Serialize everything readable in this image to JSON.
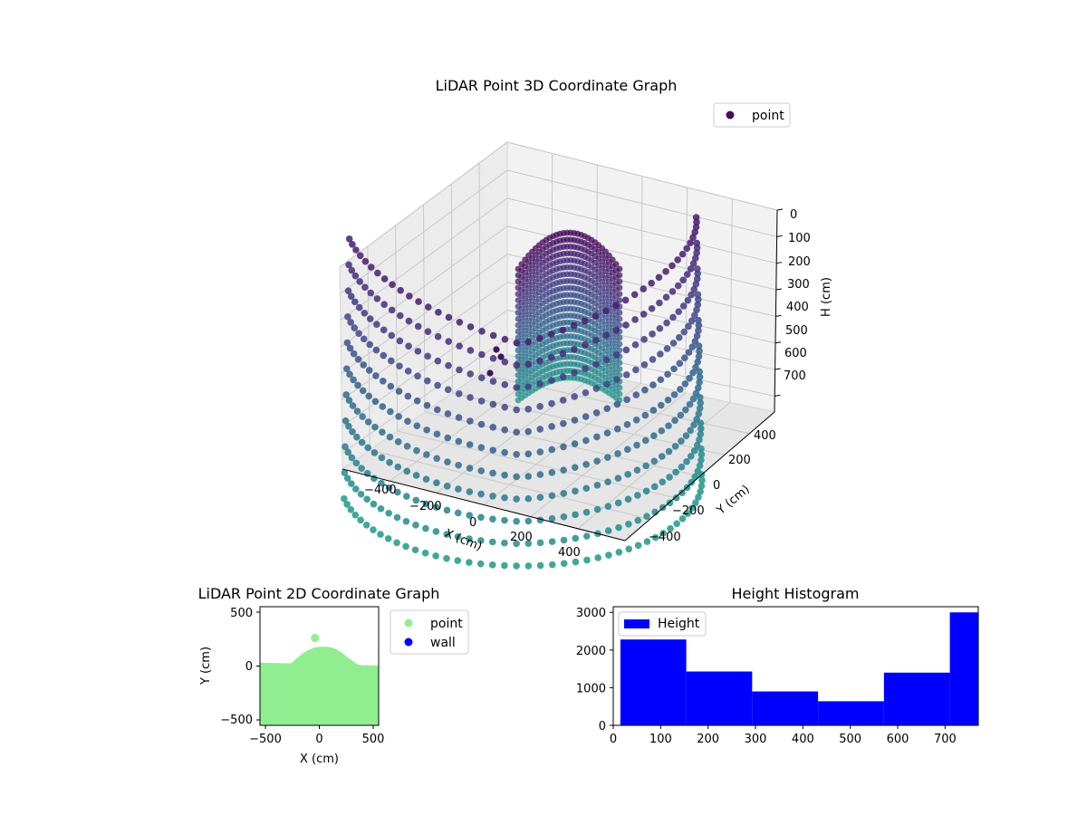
{
  "chart_data": [
    {
      "type": "scatter",
      "projection": "3d",
      "title": "LiDAR Point 3D Coordinate Graph",
      "xlabel": "X (cm)",
      "ylabel": "Y (cm)",
      "zlabel": "H (cm)",
      "x_ticks": [
        "−400",
        "−200",
        "0",
        "200",
        "400"
      ],
      "y_ticks": [
        "−400",
        "−200",
        "0",
        "200",
        "400"
      ],
      "z_ticks": [
        "0",
        "100",
        "200",
        "300",
        "400",
        "500",
        "600",
        "700"
      ],
      "z_inverted": true,
      "colormap": "viridis",
      "legend": {
        "labels": [
          "point"
        ],
        "location": "upper-right"
      },
      "grid": true
    },
    {
      "type": "scatter",
      "title": "LiDAR Point 2D Coordinate Graph",
      "xlabel": "X (cm)",
      "ylabel": "Y (cm)",
      "xlim": [
        -550,
        550
      ],
      "ylim": [
        -550,
        550
      ],
      "x_ticks": [
        "−500",
        "0",
        "500"
      ],
      "y_ticks": [
        "−500",
        "0",
        "500"
      ],
      "series": [
        {
          "name": "point",
          "color": "#90ee90",
          "outline": [
            [
              -550,
              30
            ],
            [
              -260,
              25
            ],
            [
              -200,
              80
            ],
            [
              -150,
              120
            ],
            [
              -100,
              150
            ],
            [
              -50,
              170
            ],
            [
              0,
              178
            ],
            [
              50,
              180
            ],
            [
              100,
              175
            ],
            [
              150,
              160
            ],
            [
              200,
              130
            ],
            [
              250,
              90
            ],
            [
              300,
              55
            ],
            [
              350,
              15
            ],
            [
              400,
              8
            ],
            [
              550,
              5
            ]
          ],
          "outlier": [
            -40,
            260
          ]
        },
        {
          "name": "wall",
          "color": "#0000ff"
        }
      ],
      "legend": {
        "labels": [
          "point",
          "wall"
        ],
        "location": "outside-right"
      }
    },
    {
      "type": "bar",
      "title": "Height Histogram",
      "xlim": [
        0,
        770
      ],
      "ylim": [
        0,
        3150
      ],
      "x_ticks": [
        0,
        100,
        200,
        300,
        400,
        500,
        600,
        700
      ],
      "y_ticks": [
        0,
        1000,
        2000,
        3000
      ],
      "bin_edges": [
        15,
        154,
        293,
        432,
        571,
        710,
        770
      ],
      "values": [
        2280,
        1430,
        900,
        640,
        1400,
        3000
      ],
      "color": "#0000ff",
      "legend": {
        "labels": [
          "Height"
        ],
        "location": "upper-left"
      }
    }
  ]
}
